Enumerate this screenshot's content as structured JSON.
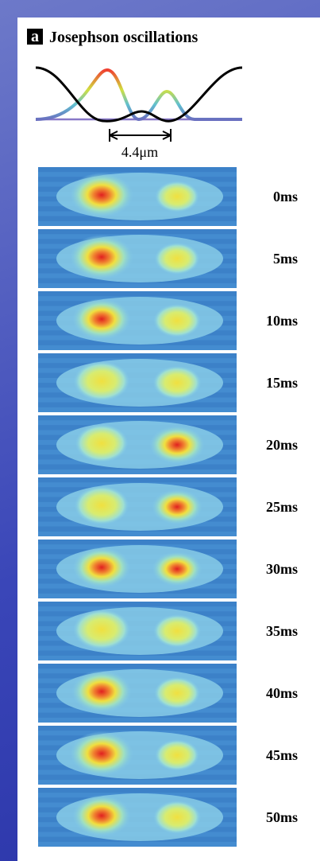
{
  "panel": {
    "letter": "a",
    "title": "Josephson oscillations",
    "scale_label": "4.4μm",
    "frames": [
      {
        "label": "0ms"
      },
      {
        "label": "5ms"
      },
      {
        "label": "10ms"
      },
      {
        "label": "15ms"
      },
      {
        "label": "20ms"
      },
      {
        "label": "25ms"
      },
      {
        "label": "30ms"
      },
      {
        "label": "35ms"
      },
      {
        "label": "40ms"
      },
      {
        "label": "45ms"
      },
      {
        "label": "50ms"
      }
    ]
  }
}
